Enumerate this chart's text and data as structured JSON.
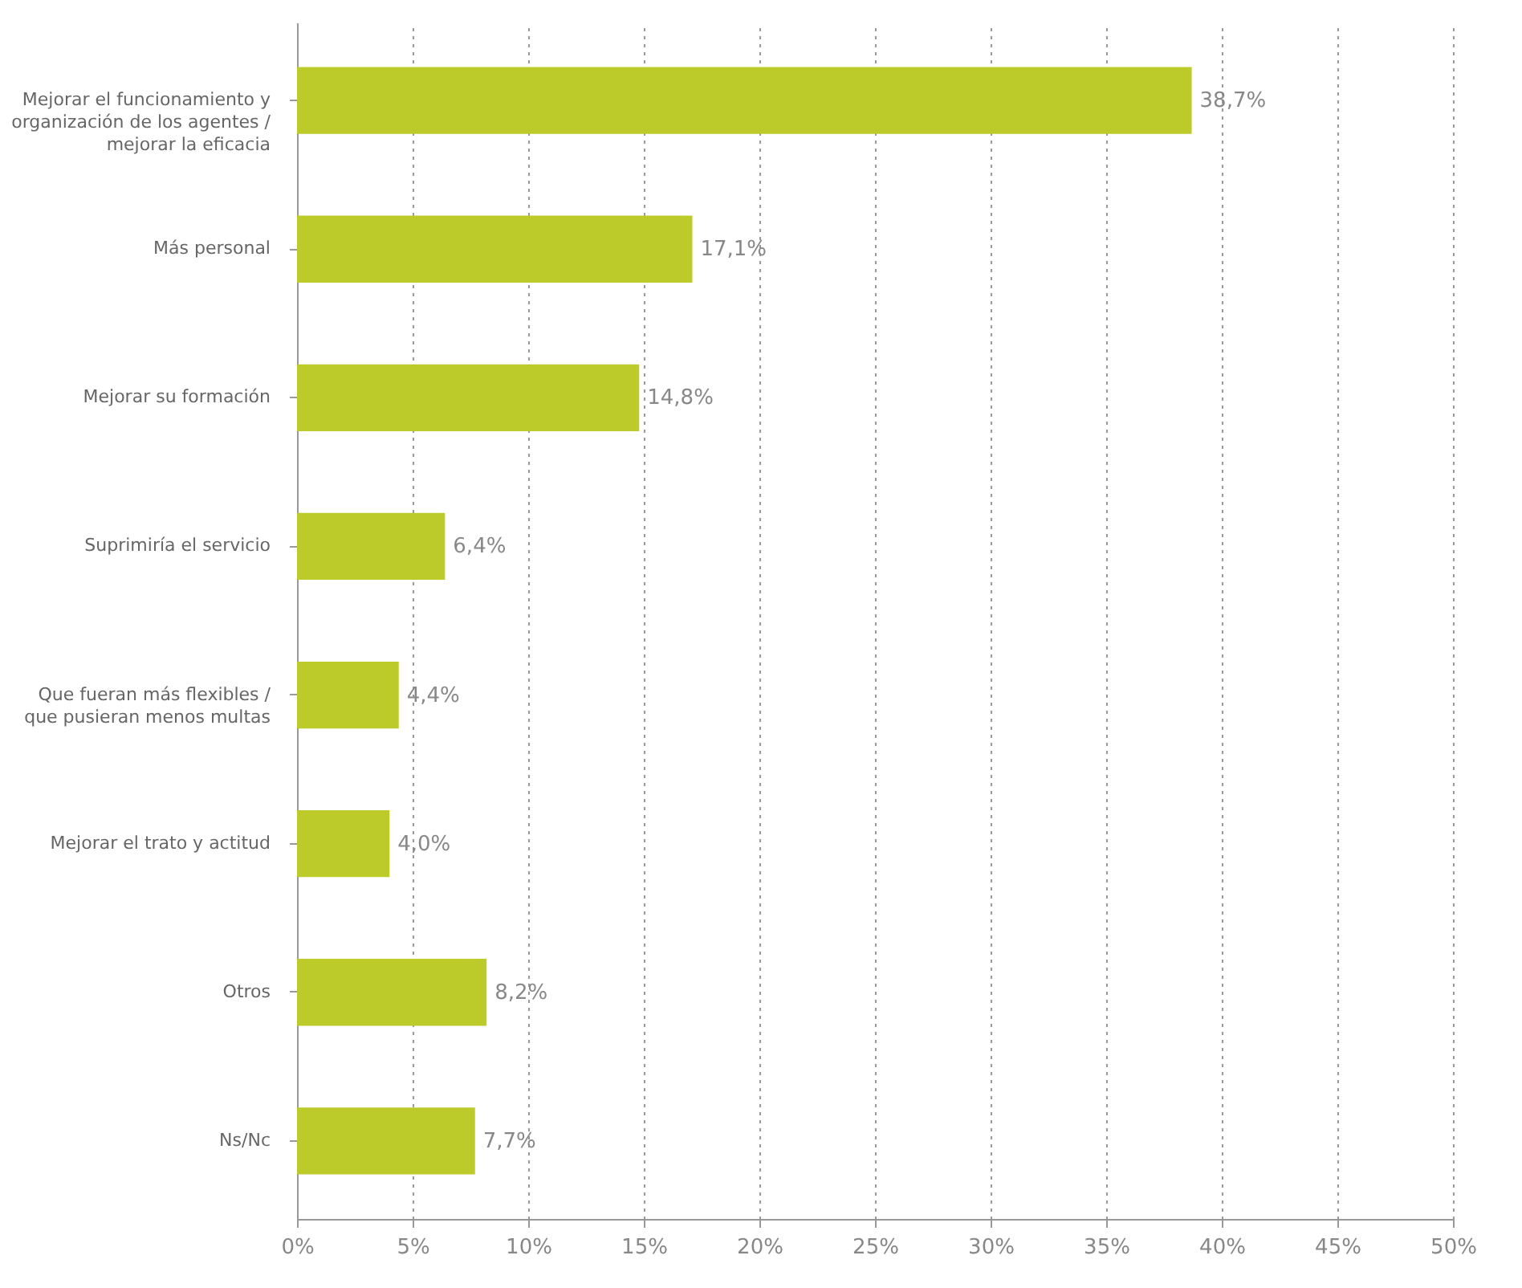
{
  "chart_data": {
    "type": "bar",
    "orientation": "horizontal",
    "categories": [
      "Mejorar el funcionamiento y\norganización de los agentes /\nmejorar la eficacia",
      "Más personal",
      "Mejorar su formación",
      "Suprimiría el servicio",
      "Que fueran más flexibles /\nque pusieran menos multas",
      "Mejorar el trato y actitud",
      "Otros",
      "Ns/Nc"
    ],
    "values": [
      38.7,
      17.1,
      14.8,
      6.4,
      4.4,
      4.0,
      8.2,
      7.7
    ],
    "value_labels": [
      "38,7%",
      "17,1%",
      "14,8%",
      "6,4%",
      "4,4%",
      "4,0%",
      "8,2%",
      "7,7%"
    ],
    "color": "#bccb2a",
    "xlim": [
      0,
      50
    ],
    "xticks": [
      {
        "value": 0,
        "label": "0%"
      },
      {
        "value": 5,
        "label": "5%"
      },
      {
        "value": 10,
        "label": "10%"
      },
      {
        "value": 15,
        "label": "15%"
      },
      {
        "value": 20,
        "label": "20%"
      },
      {
        "value": 25,
        "label": "25%"
      },
      {
        "value": 30,
        "label": "30%"
      },
      {
        "value": 35,
        "label": "35%"
      },
      {
        "value": 40,
        "label": "40%"
      },
      {
        "value": 45,
        "label": "45%"
      },
      {
        "value": 50,
        "label": "50%"
      }
    ],
    "grid": "x"
  }
}
